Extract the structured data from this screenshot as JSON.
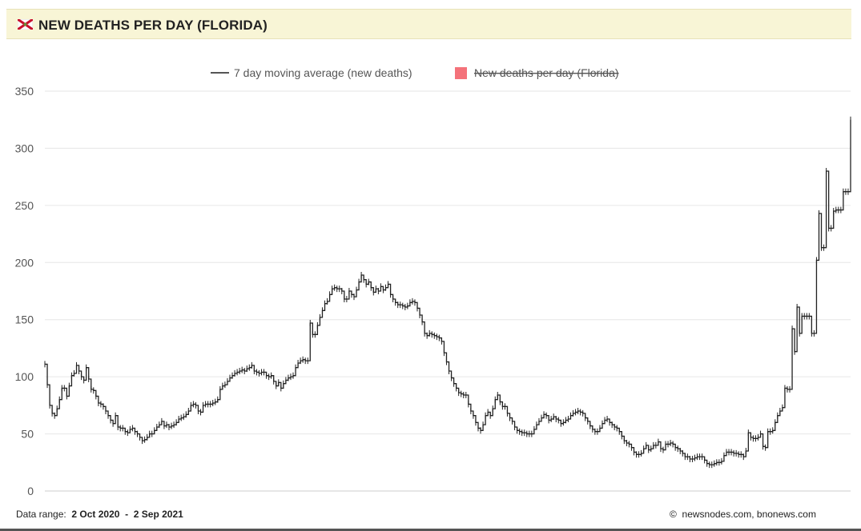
{
  "header": {
    "title": "NEW DEATHS PER DAY (FLORIDA)",
    "flag_icon": "florida-flag-icon"
  },
  "footer": {
    "data_range_label": "Data range:",
    "range_start": "2 Oct 2020",
    "range_separator": "-",
    "range_end": "2 Sep 2021",
    "copyright_symbol": "©",
    "source": "newsnodes.com, bnonews.com"
  },
  "colors": {
    "header_bg": "#f8f5d6",
    "line": "#222222",
    "daily_legend": "#f4727a",
    "grid": "#e6e6e6"
  },
  "chart_data": {
    "type": "line",
    "title": "NEW DEATHS PER DAY (FLORIDA)",
    "xlabel": "",
    "ylabel": "",
    "x_start": "2 Oct 2020",
    "x_end": "2 Sep 2021",
    "ylim": [
      0,
      350
    ],
    "yticks": [
      "0",
      "50",
      "100",
      "150",
      "200",
      "250",
      "300",
      "350"
    ],
    "grid": true,
    "legend_position": "top-center",
    "series": [
      {
        "name": "7 day moving average (new deaths)",
        "visible": true,
        "values": [
          111,
          93,
          75,
          68,
          66,
          72,
          80,
          90,
          90,
          83,
          92,
          101,
          103,
          110,
          105,
          100,
          97,
          108,
          98,
          89,
          88,
          83,
          77,
          76,
          74,
          70,
          66,
          62,
          59,
          66,
          56,
          55,
          55,
          52,
          51,
          54,
          55,
          52,
          50,
          47,
          44,
          45,
          47,
          50,
          50,
          53,
          56,
          58,
          61,
          57,
          58,
          56,
          57,
          58,
          60,
          63,
          64,
          65,
          67,
          70,
          75,
          76,
          75,
          70,
          69,
          75,
          76,
          76,
          76,
          77,
          78,
          80,
          89,
          92,
          93,
          96,
          99,
          101,
          103,
          104,
          105,
          106,
          105,
          107,
          108,
          110,
          105,
          104,
          103,
          104,
          104,
          101,
          100,
          101,
          96,
          92,
          95,
          90,
          94,
          97,
          99,
          100,
          101,
          108,
          112,
          114,
          115,
          114,
          114,
          147,
          137,
          137,
          145,
          152,
          158,
          164,
          166,
          172,
          177,
          178,
          177,
          177,
          175,
          168,
          168,
          175,
          172,
          170,
          176,
          183,
          189,
          185,
          181,
          183,
          178,
          174,
          177,
          175,
          179,
          176,
          178,
          181,
          172,
          168,
          165,
          163,
          163,
          162,
          161,
          162,
          165,
          166,
          165,
          160,
          154,
          148,
          138,
          136,
          138,
          137,
          136,
          135,
          134,
          131,
          121,
          113,
          105,
          99,
          94,
          90,
          86,
          85,
          84,
          84,
          76,
          70,
          66,
          60,
          55,
          53,
          58,
          66,
          69,
          66,
          72,
          80,
          84,
          78,
          74,
          74,
          68,
          64,
          61,
          56,
          53,
          52,
          51,
          51,
          50,
          50,
          50,
          54,
          58,
          61,
          64,
          67,
          66,
          62,
          63,
          65,
          63,
          62,
          59,
          60,
          62,
          63,
          66,
          68,
          69,
          70,
          69,
          68,
          64,
          61,
          57,
          54,
          52,
          52,
          55,
          59,
          62,
          63,
          60,
          58,
          56,
          55,
          52,
          48,
          44,
          42,
          41,
          38,
          34,
          32,
          32,
          33,
          37,
          40,
          36,
          37,
          40,
          40,
          43,
          37,
          36,
          41,
          41,
          42,
          41,
          38,
          37,
          35,
          33,
          30,
          30,
          28,
          28,
          29,
          30,
          30,
          30,
          27,
          24,
          23,
          23,
          24,
          25,
          25,
          26,
          31,
          34,
          34,
          34,
          33,
          33,
          32,
          32,
          30,
          35,
          51,
          47,
          46,
          46,
          47,
          50,
          39,
          38,
          52,
          52,
          53,
          60,
          66,
          70,
          73,
          90,
          89,
          89,
          142,
          122,
          161,
          138,
          153,
          153,
          153,
          153,
          138,
          138,
          202,
          243,
          213,
          213,
          280,
          230,
          230,
          245,
          246,
          246,
          246,
          262,
          262,
          262,
          325
        ]
      },
      {
        "name": "New deaths per day (Florida)",
        "visible": false,
        "values": []
      }
    ]
  }
}
